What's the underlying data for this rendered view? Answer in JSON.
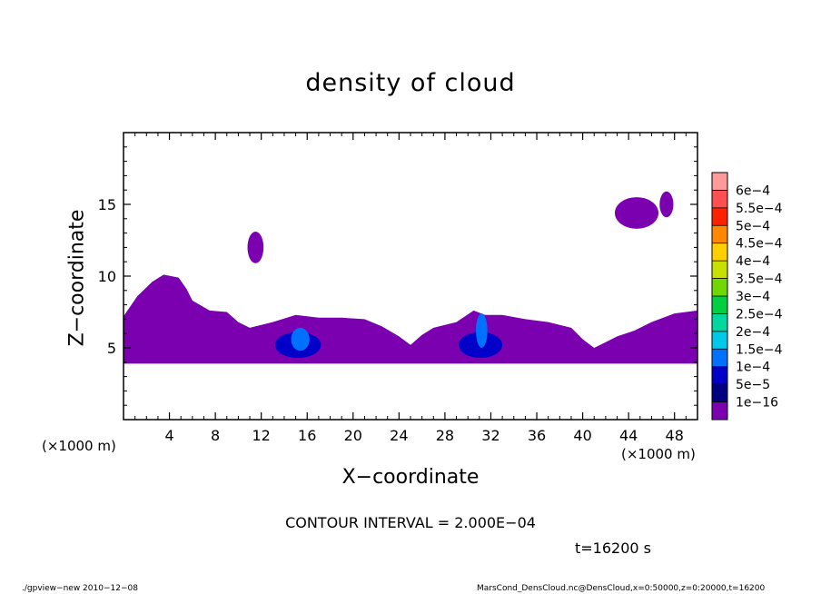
{
  "chart_data": {
    "type": "heatmap",
    "title": "density of cloud",
    "xlabel": "X−coordinate",
    "ylabel": "Z−coordinate",
    "x_unit_label": "(×1000 m)",
    "x_unit_label_right": "(×1000 m)",
    "xlim": [
      0,
      50
    ],
    "ylim": [
      0,
      20
    ],
    "x_ticks": [
      4,
      8,
      12,
      16,
      20,
      24,
      28,
      32,
      36,
      40,
      44,
      48
    ],
    "x_tick_labels": [
      "4",
      "8",
      "12",
      "16",
      "20",
      "24",
      "28",
      "32",
      "36",
      "40",
      "44",
      "48"
    ],
    "y_ticks": [
      5,
      10,
      15
    ],
    "y_tick_labels": [
      "5",
      "10",
      "15"
    ],
    "colorbar": {
      "labels": [
        "6e−4",
        "5.5e−4",
        "5e−4",
        "4.5e−4",
        "4e−4",
        "3.5e−4",
        "3e−4",
        "2.5e−4",
        "2e−4",
        "1.5e−4",
        "1e−4",
        "5e−5",
        "1e−16"
      ],
      "colors": [
        "#ff9a9a",
        "#ff5050",
        "#ff2000",
        "#ff8800",
        "#ffd000",
        "#c8e000",
        "#70d800",
        "#00d040",
        "#00d8a0",
        "#00c8e8",
        "#0070ff",
        "#0000c8",
        "#000080",
        "#7b00b0"
      ]
    },
    "contour_interval": "CONTOUR INTERVAL = 2.000E−04",
    "time_label": "t=16200 s",
    "regions": [
      {
        "level": "1e-16",
        "shape": "band",
        "x": [
          0,
          50
        ],
        "points": [
          [
            0,
            7.2
          ],
          [
            1.2,
            8.6
          ],
          [
            2.5,
            9.6
          ],
          [
            3.5,
            10.1
          ],
          [
            4.8,
            9.9
          ],
          [
            5.5,
            9.1
          ],
          [
            6,
            8.3
          ],
          [
            7.5,
            7.6
          ],
          [
            9,
            7.5
          ],
          [
            10,
            6.8
          ],
          [
            11,
            6.4
          ],
          [
            13,
            6.8
          ],
          [
            15,
            7.3
          ],
          [
            17,
            7.1
          ],
          [
            19,
            7.1
          ],
          [
            21,
            7.0
          ],
          [
            22.5,
            6.5
          ],
          [
            24,
            5.8
          ],
          [
            25,
            5.2
          ],
          [
            26,
            5.9
          ],
          [
            27,
            6.4
          ],
          [
            29,
            6.8
          ],
          [
            30.5,
            7.6
          ],
          [
            31.5,
            7.3
          ],
          [
            33,
            7.3
          ],
          [
            35,
            7.0
          ],
          [
            37,
            6.8
          ],
          [
            39,
            6.4
          ],
          [
            40,
            5.6
          ],
          [
            41,
            5.0
          ],
          [
            42,
            5.4
          ],
          [
            43,
            5.8
          ],
          [
            44.5,
            6.2
          ],
          [
            46,
            6.8
          ],
          [
            48,
            7.4
          ],
          [
            50,
            7.6
          ]
        ],
        "zbottom": 3.9
      },
      {
        "level": "1e-16",
        "shape": "blob",
        "cx": 11.5,
        "cz": 12.0,
        "rx": 0.7,
        "rz": 1.1
      },
      {
        "level": "1e-16",
        "shape": "blob",
        "cx": 44.7,
        "cz": 14.4,
        "rx": 1.9,
        "rz": 1.1
      },
      {
        "level": "1e-16",
        "shape": "blob",
        "cx": 47.3,
        "cz": 15.0,
        "rx": 0.6,
        "rz": 0.9
      },
      {
        "level": "5e-5",
        "shape": "blob",
        "cx": 15.2,
        "cz": 5.2,
        "rx": 2.0,
        "rz": 0.9
      },
      {
        "level": "5e-5",
        "shape": "blob",
        "cx": 31.1,
        "cz": 5.2,
        "rx": 1.9,
        "rz": 0.9
      },
      {
        "level": "1e-4",
        "shape": "blob",
        "cx": 15.4,
        "cz": 5.6,
        "rx": 0.8,
        "rz": 0.8
      },
      {
        "level": "1e-4",
        "shape": "blob",
        "cx": 31.2,
        "cz": 6.2,
        "rx": 0.5,
        "rz": 1.2
      }
    ]
  },
  "footer": {
    "left": "./gpview−new  2010−12−08",
    "right": "MarsCond_DensCloud.nc@DensCloud,x=0:50000,z=0:20000,t=16200"
  }
}
